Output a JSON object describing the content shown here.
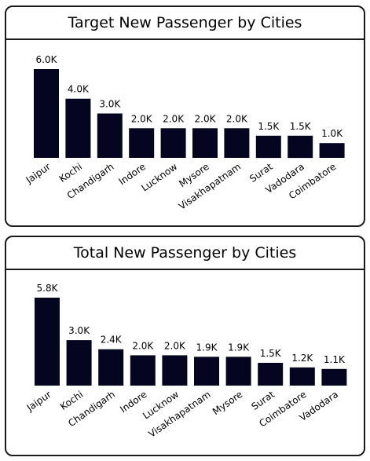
{
  "chart_data": [
    {
      "type": "bar",
      "title": "Target New Passenger by Cities",
      "categories": [
        "Jaipur",
        "Kochi",
        "Chandigarh",
        "Indore",
        "Lucknow",
        "Mysore",
        "Visakhapatnam",
        "Surat",
        "Vadodara",
        "Coimbatore"
      ],
      "values": [
        6000,
        4000,
        3000,
        2000,
        2000,
        2000,
        2000,
        1500,
        1500,
        1000
      ],
      "labels": [
        "6.0K",
        "4.0K",
        "3.0K",
        "2.0K",
        "2.0K",
        "2.0K",
        "2.0K",
        "1.5K",
        "1.5K",
        "1.0K"
      ],
      "ylim": [
        0,
        6000
      ],
      "grid": false,
      "bar_color": "#05051f"
    },
    {
      "type": "bar",
      "title": "Total New Passenger by Cities",
      "categories": [
        "Jaipur",
        "Kochi",
        "Chandigarh",
        "Indore",
        "Lucknow",
        "Visakhapatnam",
        "Mysore",
        "Surat",
        "Coimbatore",
        "Vadodara"
      ],
      "values": [
        5800,
        3000,
        2400,
        2000,
        2000,
        1900,
        1900,
        1500,
        1200,
        1100
      ],
      "labels": [
        "5.8K",
        "3.0K",
        "2.4K",
        "2.0K",
        "2.0K",
        "1.9K",
        "1.9K",
        "1.5K",
        "1.2K",
        "1.1K"
      ],
      "ylim": [
        0,
        5800
      ],
      "grid": false,
      "bar_color": "#05051f"
    }
  ]
}
